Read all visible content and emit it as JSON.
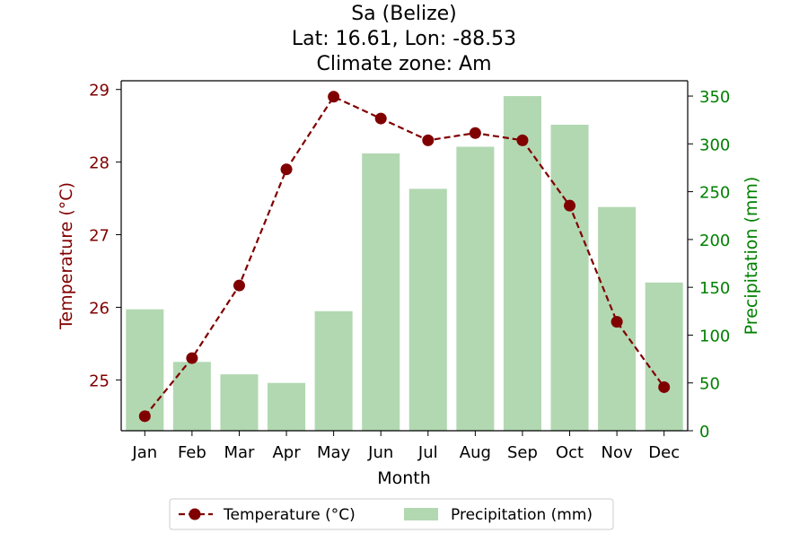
{
  "chart_data": {
    "type": "bar+line",
    "title_lines": [
      "Sa (Belize)",
      "Lat: 16.61, Lon: -88.53",
      "Climate zone: Am"
    ],
    "xlabel": "Month",
    "ylabel_left": "Temperature (°C)",
    "ylabel_right": "Precipitation (mm)",
    "categories": [
      "Jan",
      "Feb",
      "Mar",
      "Apr",
      "May",
      "Jun",
      "Jul",
      "Aug",
      "Sep",
      "Oct",
      "Nov",
      "Dec"
    ],
    "series": [
      {
        "name": "Temperature (°C)",
        "type": "line",
        "axis": "left",
        "color": "#800000",
        "values": [
          24.5,
          25.3,
          26.3,
          27.9,
          28.9,
          28.6,
          28.3,
          28.4,
          28.3,
          27.4,
          25.8,
          24.9
        ]
      },
      {
        "name": "Precipitation (mm)",
        "type": "bar",
        "axis": "right",
        "color": "#b2d8b2",
        "values": [
          127,
          72,
          59,
          50,
          125,
          290,
          253,
          297,
          350,
          320,
          234,
          155
        ]
      }
    ],
    "ylim_left": [
      24.3,
      29.12
    ],
    "yticks_left": [
      "25",
      "26",
      "27",
      "28",
      "29"
    ],
    "ylim_right": [
      0,
      366
    ],
    "yticks_right": [
      "0",
      "50",
      "100",
      "150",
      "200",
      "250",
      "300",
      "350"
    ],
    "left_axis_color": "#800000",
    "right_axis_color": "#008000",
    "grid": false,
    "legend_position": "bottom-center"
  }
}
